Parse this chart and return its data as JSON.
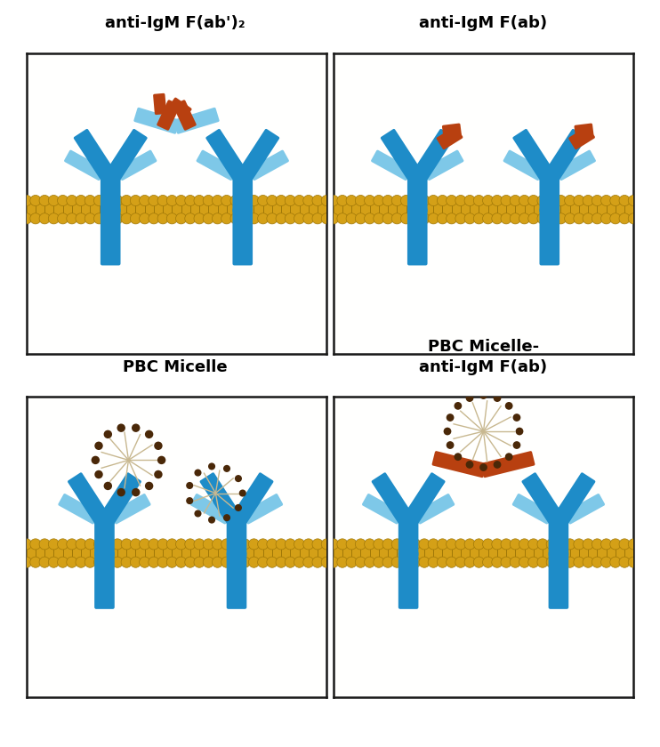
{
  "title_tl": "anti-IgM F(ab')₂",
  "title_tr": "anti-IgM F(ab)",
  "title_bl": "PBC Micelle",
  "title_br": "PBC Micelle-\nanti-IgM F(ab)",
  "bg_color": "#ffffff",
  "panel_bg_top": "#fffffe",
  "panel_bg_bot": "#fffff8",
  "gold": "#D4A017",
  "gold_dark": "#A07808",
  "gold_line": "#888800",
  "blue_light": "#7EC8E8",
  "blue_dark": "#1E8CC8",
  "red_fab": "#B84010",
  "micelle_arm": "#C8B890",
  "micelle_dot": "#4A2808",
  "panel_border": "#181818",
  "title_fs": 13
}
